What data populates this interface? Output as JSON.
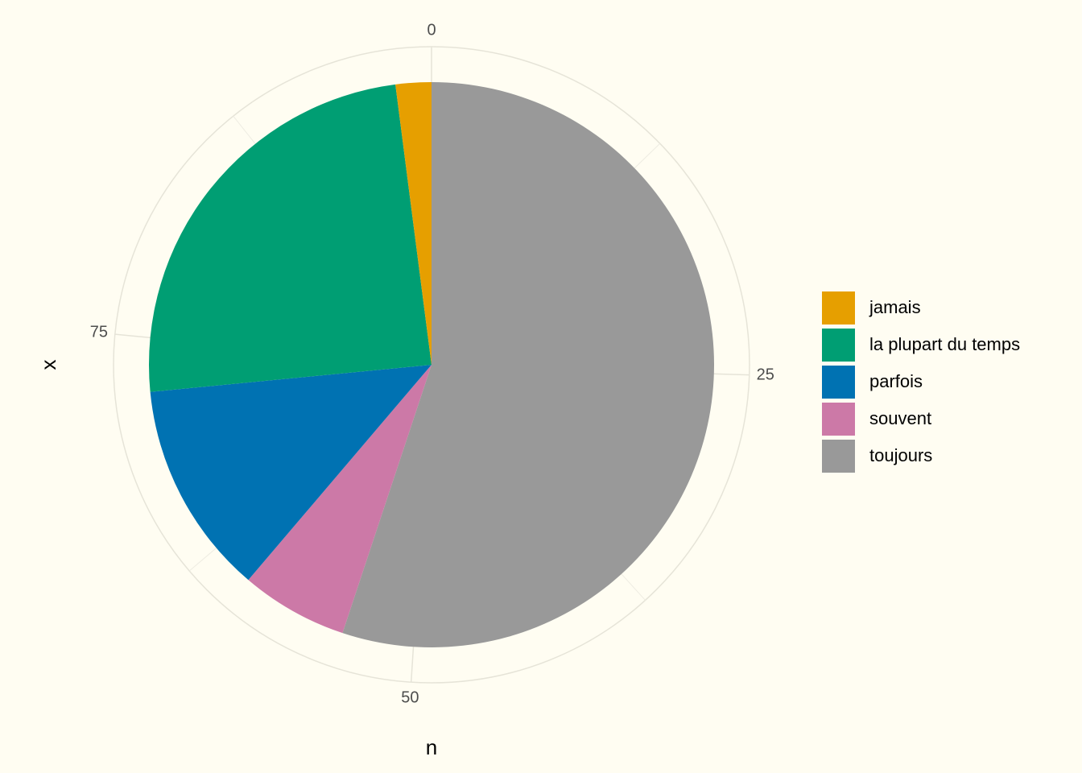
{
  "chart_data": {
    "type": "pie",
    "x_label": "n",
    "y_label": "x",
    "categories": [
      "jamais",
      "la plupart du temps",
      "parfois",
      "souvent",
      "toujours"
    ],
    "values": [
      2,
      24,
      12,
      6,
      54
    ],
    "colors": [
      "#E69F00",
      "#009E73",
      "#0072B2",
      "#CC79A7",
      "#999999"
    ],
    "ylim": [
      0,
      98
    ],
    "yticks": [
      0,
      25,
      50,
      75
    ],
    "yminor": [
      12.5,
      37.5,
      62.5,
      87.5
    ],
    "grid": true,
    "legend": "right"
  }
}
